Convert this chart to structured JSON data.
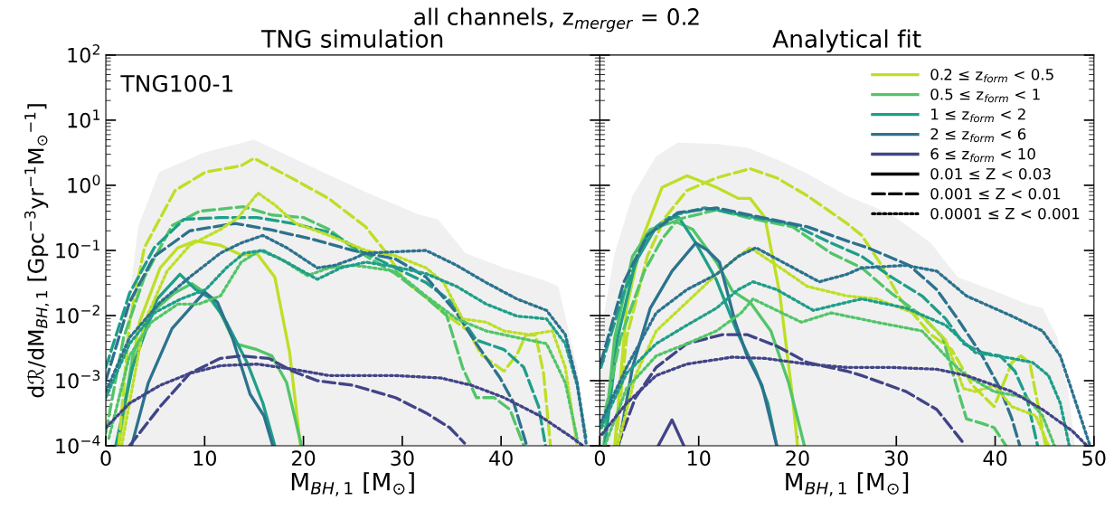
{
  "chart_data": [
    {
      "type": "line",
      "title": "TNG simulation",
      "subtitle": "all channels, z$_{merger}$ = 0.2",
      "xlabel": "M$_{BH,1}$ [M$_{⊙}$]",
      "ylabel": "dℛ/dM$_{BH,1}$ [Gpc$^{−3}$yr$^{−1}$M$_{⊙}$$^{−1}$]",
      "annotations": [
        "TNG100-1"
      ],
      "log": true,
      "xlim": [
        0,
        50
      ],
      "ylim": [
        0.0001,
        100
      ],
      "xticks": [
        0,
        10,
        20,
        30,
        40,
        {
          "value": 50,
          "label": null
        }
      ],
      "yticks": [
        {
          "value": 0.0001,
          "label": "10$^{−4}$"
        },
        {
          "value": 0.001,
          "label": "10$^{−3}$"
        },
        {
          "value": 0.01,
          "label": "10$^{−2}$"
        },
        {
          "value": 0.1,
          "label": "10$^{−1}$"
        },
        {
          "value": 1,
          "label": "10$^{0}$"
        },
        {
          "value": 10,
          "label": "10$^{1}$"
        },
        {
          "value": 100,
          "label": "10$^{2}$"
        }
      ],
      "series": [
        {
          "type": "area",
          "color": "#f0f0f0",
          "x": [
            0.5,
            2.4,
            3.3,
            5.4,
            10,
            15,
            20,
            23.2,
            27,
            31.8,
            33.6,
            36.4,
            40.3,
            44.3,
            45.8,
            47.7,
            48.6
          ],
          "values": [
            0.0001,
            0.02,
            0.24,
            1.6,
            3.2,
            5.0,
            2.2,
            1.3,
            0.71,
            0.35,
            0.3,
            0.091,
            0.054,
            0.035,
            0.028,
            0.0016,
            0.0001
          ]
        },
        {
          "color": "#bddf26",
          "line_style": "solid",
          "x": [
            1.3,
            3.4,
            5.5,
            7.3,
            9.1,
            11.6,
            13.7,
            15.3,
            17.1,
            18.6,
            19.7
          ],
          "values": [
            0.0001,
            0.0079,
            0.054,
            0.11,
            0.14,
            0.12,
            0.085,
            0.089,
            0.039,
            0.0027,
            0.0001
          ]
        },
        {
          "color": "#52c569",
          "line_style": "solid",
          "x": [
            1.2,
            2.8,
            4.9,
            6.9,
            8.7,
            10.1,
            11.6,
            13.1,
            15.3,
            16.8,
            18.3,
            19.8
          ],
          "values": [
            0.0001,
            0.0027,
            0.012,
            0.022,
            0.031,
            0.022,
            0.011,
            0.0037,
            0.003,
            0.0024,
            0.00093,
            0.0001
          ]
        },
        {
          "color": "#1f9e89",
          "line_style": "solid",
          "x": [
            1.0,
            2.7,
            5.2,
            7.5,
            9.1,
            10.7,
            12.2,
            14.3,
            15.9,
            17.1
          ],
          "values": [
            0.0001,
            0.0016,
            0.018,
            0.043,
            0.025,
            0.018,
            0.0079,
            0.0019,
            0.00045,
            0.0001
          ]
        },
        {
          "color": "#2c728e",
          "line_style": "solid",
          "x": [
            2.6,
            4.3,
            6.7,
            10.0,
            11.3,
            12.8,
            14.6,
            16.0,
            16.9
          ],
          "values": [
            0.0001,
            0.00093,
            0.0063,
            0.023,
            0.016,
            0.0046,
            0.00062,
            0.00029,
            0.0001
          ]
        },
        {
          "color": "#bddf26",
          "line_style": "dashed",
          "x": [
            1.3,
            2.4,
            3.9,
            7,
            10.1,
            13.7,
            15,
            19.2,
            22.6,
            26.3,
            28.4,
            30.2,
            32.4,
            34.2,
            36.7,
            38,
            40.3,
            41.6,
            42.5,
            43.5,
            44.3,
            45
          ],
          "values": [
            0.0001,
            0.0079,
            0.11,
            0.83,
            1.6,
            2.0,
            2.6,
            1.2,
            0.62,
            0.23,
            0.091,
            0.035,
            0.019,
            0.011,
            0.0058,
            0.0025,
            0.0014,
            0.0025,
            0.005,
            0.005,
            0.0013,
            0.0001
          ]
        },
        {
          "color": "#52c569",
          "line_style": "dashed",
          "x": [
            0,
            1.8,
            3.9,
            6.7,
            9.5,
            13.9,
            16.8,
            20,
            22.6,
            25,
            27,
            29.3,
            32.4,
            34.5,
            36.1,
            37.5,
            39.3,
            40.9,
            42.3
          ],
          "values": [
            0.00016,
            0.0046,
            0.039,
            0.24,
            0.4,
            0.47,
            0.35,
            0.32,
            0.21,
            0.11,
            0.071,
            0.044,
            0.019,
            0.01,
            0.0016,
            0.00055,
            0.00055,
            0.00036,
            0.0001
          ]
        },
        {
          "color": "#1f9e89",
          "line_style": "dashed",
          "x": [
            0,
            2.4,
            4.9,
            7.9,
            11.6,
            15.3,
            18.9,
            22.6,
            26.3,
            29.3,
            32.4,
            34.8,
            37.5,
            40.3,
            42.3,
            43.8,
            44.5
          ],
          "values": [
            0.0016,
            0.022,
            0.11,
            0.3,
            0.32,
            0.32,
            0.26,
            0.19,
            0.091,
            0.054,
            0.032,
            0.017,
            0.0042,
            0.003,
            0.0016,
            0.0004,
            0.0001
          ]
        },
        {
          "color": "#2c728e",
          "line_style": "dashed",
          "x": [
            0,
            2.4,
            4.9,
            8.5,
            13.1,
            16.5,
            20.8,
            25,
            29.3,
            32.4,
            35.5,
            37.5,
            39.9,
            41.3,
            42.6
          ],
          "values": [
            0.001,
            0.016,
            0.081,
            0.2,
            0.26,
            0.21,
            0.15,
            0.1,
            0.074,
            0.039,
            0.011,
            0.0037,
            0.0011,
            0.00045,
            0.0001
          ]
        },
        {
          "color": "#414487",
          "line_style": "dashed",
          "x": [
            2.4,
            5.5,
            8.5,
            11.6,
            13.7,
            16.5,
            18.9,
            21.4,
            25,
            29.3,
            32.4,
            34.8,
            36.3
          ],
          "values": [
            0.0001,
            0.0004,
            0.0013,
            0.0022,
            0.0024,
            0.0022,
            0.0014,
            0.001,
            0.00085,
            0.00055,
            0.00032,
            0.00019,
            0.00011
          ]
        },
        {
          "color": "#bddf26",
          "line_style": "dotted",
          "x": [
            1.6,
            3.9,
            6.2,
            8.5,
            11.6,
            13.4,
            15.4,
            17.1,
            19.2,
            22.6,
            26.3,
            29.3,
            32.4,
            34.2,
            36.1,
            38.5,
            40.3,
            42.8,
            45.2,
            46.5,
            47.7
          ],
          "values": [
            0.0001,
            0.0079,
            0.048,
            0.12,
            0.21,
            0.32,
            0.76,
            0.5,
            0.26,
            0.17,
            0.1,
            0.083,
            0.054,
            0.032,
            0.0089,
            0.0079,
            0.0058,
            0.0051,
            0.0058,
            0.0016,
            0.0001
          ]
        },
        {
          "color": "#52c569",
          "line_style": "dotted",
          "x": [
            0.3,
            2.4,
            4.6,
            7.3,
            9.4,
            11.6,
            13.7,
            15.6,
            17.7,
            20.4,
            22.6,
            25,
            26.3,
            29.3,
            32.4,
            35.5,
            38.5,
            41.6,
            44.6,
            46.5,
            47.7
          ],
          "values": [
            0.00013,
            0.0024,
            0.0079,
            0.015,
            0.015,
            0.02,
            0.066,
            0.1,
            0.074,
            0.041,
            0.054,
            0.059,
            0.056,
            0.048,
            0.02,
            0.0089,
            0.0058,
            0.0046,
            0.0037,
            0.00093,
            0.00013
          ]
        },
        {
          "color": "#1f9e89",
          "line_style": "dotted",
          "x": [
            0,
            2.4,
            4.9,
            7.6,
            10.1,
            12.2,
            14,
            15.9,
            18.3,
            21.4,
            23.8,
            26.3,
            29.3,
            32.4,
            35.5,
            38.5,
            41.6,
            44.6,
            46.5,
            47.7,
            48.6
          ],
          "values": [
            0.00055,
            0.0037,
            0.011,
            0.018,
            0.025,
            0.054,
            0.091,
            0.1,
            0.066,
            0.036,
            0.054,
            0.066,
            0.056,
            0.044,
            0.028,
            0.015,
            0.0098,
            0.0089,
            0.0037,
            0.00085,
            0.00013
          ]
        },
        {
          "color": "#2c728e",
          "line_style": "dotted",
          "x": [
            0,
            2.4,
            5.5,
            8.5,
            11.6,
            13.7,
            15.9,
            18.3,
            21.4,
            23.2,
            25,
            26.3,
            32.4,
            35.5,
            38.5,
            41.6,
            44.6,
            46.5,
            47.7,
            48.6
          ],
          "values": [
            0.00068,
            0.0046,
            0.016,
            0.039,
            0.091,
            0.13,
            0.17,
            0.11,
            0.054,
            0.059,
            0.074,
            0.091,
            0.1,
            0.059,
            0.032,
            0.018,
            0.012,
            0.0051,
            0.00093,
            0.00011
          ]
        },
        {
          "color": "#414487",
          "line_style": "dotted",
          "x": [
            0,
            2.4,
            5.5,
            8.5,
            11.6,
            15.3,
            18.9,
            22.6,
            29.3,
            33.9,
            37,
            40.3,
            43.9,
            47,
            48.3
          ],
          "values": [
            0.00019,
            0.00045,
            0.00085,
            0.0013,
            0.0017,
            0.0018,
            0.0015,
            0.0012,
            0.0012,
            0.0011,
            0.00085,
            0.00055,
            0.00029,
            0.00014,
            0.0001
          ]
        }
      ]
    },
    {
      "type": "line",
      "title": "Analytical fit",
      "xlabel": "M$_{BH,1}$ [M$_{⊙}$]",
      "log": true,
      "legend": "top right",
      "tick_labels": "x",
      "xlim": [
        0,
        50
      ],
      "ylim": [
        0.0001,
        100
      ],
      "xticks": [
        0,
        10,
        20,
        30,
        40,
        50
      ],
      "yticks": [
        0.0001,
        0.001,
        0.01,
        0.1,
        1,
        10,
        100
      ],
      "series": [
        {
          "type": "area",
          "color": "#f0f0f0",
          "x": [
            0,
            1.5,
            3.3,
            5.7,
            7.9,
            11.8,
            14.9,
            17.9,
            21,
            25,
            29.5,
            33.5,
            36.2,
            40.5,
            43.2,
            44.8,
            46.3,
            47.5,
            48.1
          ],
          "values": [
            0.0046,
            0.091,
            0.69,
            2.8,
            4.5,
            4.3,
            3.8,
            2.5,
            1.5,
            0.69,
            0.36,
            0.13,
            0.039,
            0.022,
            0.015,
            0.013,
            0.0046,
            0.00055,
            0.0001
          ]
        },
        {
          "name": "0.2 ≤ z$_{form}$ < 0.5",
          "color": "#bddf26",
          "line_style": "solid",
          "x": [
            1.5,
            2.7,
            4.2,
            6.3,
            8.8,
            11.8,
            14,
            15.2,
            16.7,
            18.2,
            19.5,
            20
          ],
          "values": [
            0.0001,
            0.013,
            0.14,
            0.93,
            1.4,
            0.93,
            0.63,
            0.63,
            0.32,
            0.022,
            0.00055,
            0.0001
          ]
        },
        {
          "name": "0.5 ≤ z$_{form}$ < 1",
          "color": "#52c569",
          "line_style": "solid",
          "x": [
            0.4,
            1.5,
            3.3,
            5.1,
            7.6,
            9.4,
            11.8,
            13.4,
            15.2,
            17.3,
            19.1,
            20.7
          ],
          "values": [
            0.0001,
            0.0046,
            0.081,
            0.21,
            0.28,
            0.21,
            0.066,
            0.024,
            0.016,
            0.0058,
            0.00093,
            0.0001
          ]
        },
        {
          "name": "1 ≤ z$_{form}$ < 2",
          "color": "#1f9e89",
          "line_style": "solid",
          "x": [
            0.5,
            1.8,
            3.6,
            5.7,
            6.95,
            8,
            9.7,
            11.8,
            14,
            15.8,
            17,
            17.9
          ],
          "values": [
            0.0001,
            0.0046,
            0.066,
            0.23,
            0.32,
            0.32,
            0.13,
            0.035,
            0.0051,
            0.0014,
            0.00045,
            0.0001
          ]
        },
        {
          "name": "2 ≤ z$_{form}$ < 6",
          "color": "#2c728e",
          "line_style": "solid",
          "x": [
            1.9,
            3.3,
            5.1,
            7.3,
            9.7,
            10.9,
            12.1,
            13.7,
            14.9,
            16.4,
            17.9
          ],
          "values": [
            0.0001,
            0.0016,
            0.013,
            0.048,
            0.13,
            0.1,
            0.066,
            0.0079,
            0.0024,
            0.00085,
            0.0001
          ]
        },
        {
          "name": "6 ≤ z$_{form}$ < 10",
          "color": "#414487",
          "line_style": "solid",
          "x": [
            5.9,
            7.3,
            8.5
          ],
          "values": [
            0.0001,
            0.00025,
            0.0001
          ]
        },
        {
          "name": "0.01 ≤ Z < 0.03",
          "color": "#000000",
          "line_style": "solid"
        },
        {
          "name": "0.001 ≤ Z < 0.01",
          "color": "#000000",
          "line_style": "dashed"
        },
        {
          "name": "0.0001 ≤ Z < 0.001",
          "color": "#000000",
          "line_style": "dotted"
        },
        {
          "color": "#bddf26",
          "line_style": "dashed",
          "x": [
            1.6,
            2.7,
            4.8,
            6.6,
            8.8,
            11.8,
            15.2,
            17.9,
            21,
            25,
            26.5,
            28.3,
            30.4,
            33.5,
            35.6,
            37.7,
            39.9,
            41.7,
            42.6,
            43.5,
            44.5,
            45.1
          ],
          "values": [
            0.0001,
            0.0046,
            0.081,
            0.32,
            0.83,
            1.3,
            1.8,
            1.3,
            0.69,
            0.26,
            0.17,
            0.066,
            0.018,
            0.0051,
            0.003,
            0.00085,
            0.0004,
            0.0019,
            0.0024,
            0.0019,
            0.00032,
            0.0001
          ]
        },
        {
          "color": "#52c569",
          "line_style": "dashed",
          "x": [
            0.2,
            2.1,
            4.5,
            6.3,
            7.9,
            11.8,
            14.9,
            19.5,
            23.4,
            26.5,
            29.5,
            32.6,
            34.7,
            36,
            37.1,
            38.7,
            39.9,
            41.1
          ],
          "values": [
            0.00019,
            0.0046,
            0.048,
            0.15,
            0.3,
            0.42,
            0.32,
            0.23,
            0.091,
            0.054,
            0.022,
            0.0098,
            0.0046,
            0.00093,
            0.00026,
            0.00022,
            0.00019,
            0.0001
          ]
        },
        {
          "color": "#1f9e89",
          "line_style": "dashed",
          "x": [
            0.1,
            2.4,
            4.8,
            7.9,
            10.6,
            14.9,
            19.5,
            23.4,
            26.5,
            29.5,
            32.6,
            35,
            36.8,
            38.7,
            40.5,
            42,
            43.2,
            44.3
          ],
          "values": [
            0.0016,
            0.022,
            0.17,
            0.36,
            0.45,
            0.34,
            0.25,
            0.13,
            0.081,
            0.039,
            0.02,
            0.0089,
            0.0037,
            0.0027,
            0.0024,
            0.0014,
            0.00055,
            0.0001
          ]
        },
        {
          "color": "#2c728e",
          "line_style": "dashed",
          "x": [
            0.1,
            2.4,
            4.8,
            7.9,
            11.8,
            16.4,
            21,
            25,
            27.1,
            31.3,
            34.1,
            36.2,
            38.7,
            40.5,
            41.7,
            42.5
          ],
          "values": [
            0.0019,
            0.032,
            0.17,
            0.38,
            0.45,
            0.32,
            0.23,
            0.14,
            0.11,
            0.059,
            0.025,
            0.0089,
            0.0024,
            0.00076,
            0.00026,
            0.0001
          ]
        },
        {
          "color": "#414487",
          "line_style": "dashed",
          "x": [
            1.8,
            3.6,
            5.7,
            8.8,
            12.4,
            14.9,
            17.9,
            21,
            25,
            26.5,
            31,
            34.1,
            36.8
          ],
          "values": [
            0.0001,
            0.00055,
            0.0016,
            0.0037,
            0.0051,
            0.0051,
            0.0034,
            0.0019,
            0.0014,
            0.0012,
            0.00068,
            0.00036,
            0.00011
          ]
        },
        {
          "color": "#bddf26",
          "line_style": "dotted",
          "x": [
            1.8,
            3.6,
            5.7,
            8.8,
            11.8,
            14,
            15.2,
            17.9,
            21,
            25,
            28,
            32.6,
            35,
            36.8,
            38,
            39.9,
            41.7,
            44.1,
            45.4
          ],
          "values": [
            0.0001,
            0.0012,
            0.0058,
            0.016,
            0.043,
            0.081,
            0.11,
            0.059,
            0.028,
            0.02,
            0.018,
            0.0098,
            0.0042,
            0.00076,
            0.00068,
            0.00085,
            0.0004,
            0.00029,
            0.0001
          ]
        },
        {
          "color": "#52c569",
          "line_style": "dotted",
          "x": [
            0.5,
            2.7,
            5.7,
            8.8,
            11.8,
            14.3,
            15.5,
            17.9,
            20.4,
            23.4,
            28,
            32.6,
            35.6,
            37.1,
            39.9,
            43.2,
            44.8,
            46
          ],
          "values": [
            0.0001,
            0.00076,
            0.0024,
            0.0037,
            0.0058,
            0.011,
            0.018,
            0.012,
            0.0079,
            0.011,
            0.0079,
            0.0058,
            0.0019,
            0.0012,
            0.00068,
            0.00055,
            0.00029,
            0.0001
          ]
        },
        {
          "color": "#1f9e89",
          "line_style": "dotted",
          "x": [
            0.1,
            2.7,
            5.7,
            8.8,
            11.8,
            14,
            15.5,
            17.9,
            21.6,
            25,
            26.5,
            31,
            35,
            38,
            41.7,
            43.8,
            45.4,
            46.6,
            47.5
          ],
          "values": [
            0.00019,
            0.0013,
            0.0037,
            0.0071,
            0.013,
            0.025,
            0.033,
            0.025,
            0.012,
            0.016,
            0.018,
            0.013,
            0.0071,
            0.0027,
            0.0022,
            0.0019,
            0.0012,
            0.00045,
            0.0001
          ]
        },
        {
          "color": "#2c728e",
          "line_style": "dotted",
          "x": [
            0.1,
            2.7,
            5.7,
            8.8,
            11.8,
            14,
            15.8,
            17.9,
            22.2,
            25,
            26.5,
            31,
            34.1,
            37.1,
            41.7,
            44.8,
            46.6,
            48.4,
            49.6
          ],
          "values": [
            0.00023,
            0.0016,
            0.011,
            0.025,
            0.043,
            0.081,
            0.11,
            0.074,
            0.033,
            0.043,
            0.054,
            0.059,
            0.048,
            0.02,
            0.0098,
            0.0058,
            0.0024,
            0.00036,
            0.0001
          ]
        },
        {
          "color": "#414487",
          "line_style": "dotted",
          "x": [
            0.2,
            2.7,
            5.7,
            8.8,
            13.4,
            16.7,
            21,
            25,
            29.5,
            34.1,
            37.1,
            41.7,
            44.8,
            47.8,
            49.3
          ],
          "values": [
            0.00015,
            0.00045,
            0.0012,
            0.0018,
            0.0023,
            0.0022,
            0.0018,
            0.0016,
            0.0016,
            0.0015,
            0.0012,
            0.00068,
            0.00036,
            0.00017,
            0.0001
          ]
        }
      ]
    }
  ]
}
